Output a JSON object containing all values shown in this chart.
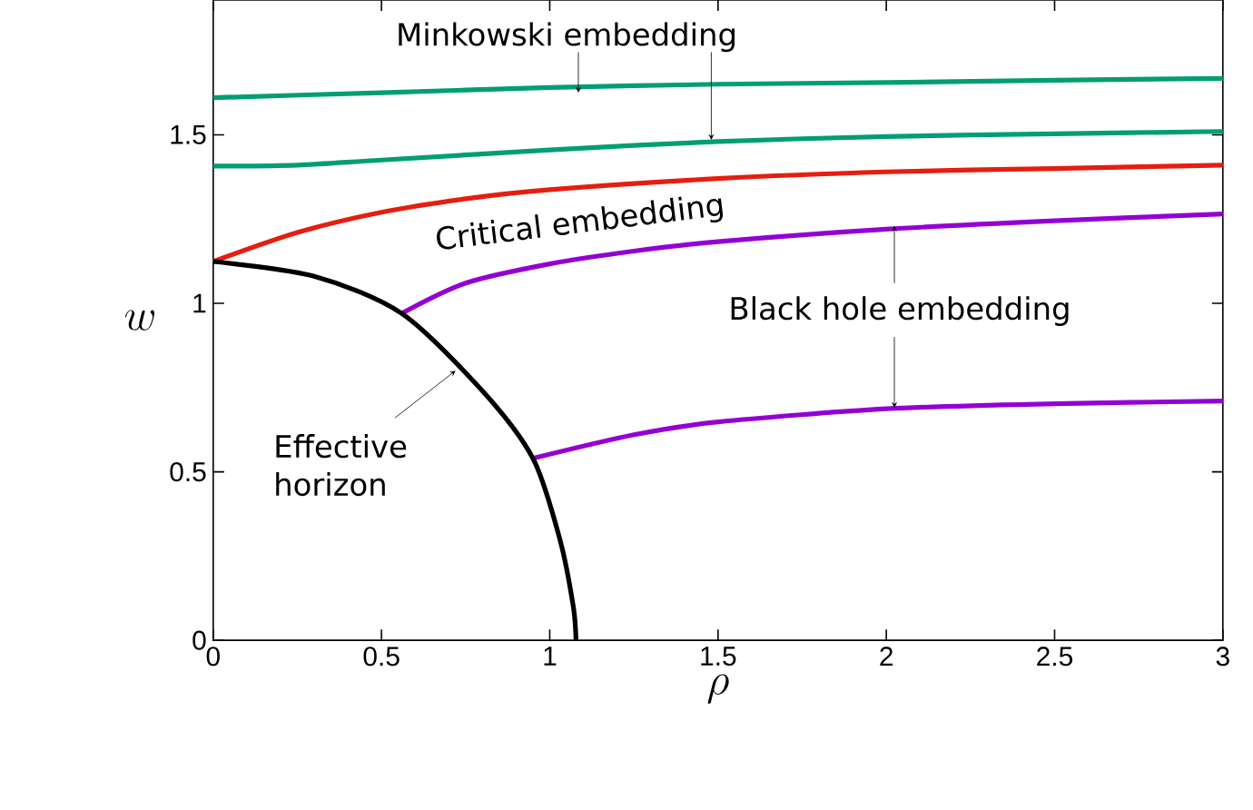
{
  "chart_data": {
    "type": "line",
    "xlabel": "\\rho",
    "ylabel": "w",
    "xlim": [
      0,
      3
    ],
    "ylim": [
      0,
      1.9
    ],
    "xticks": [
      0,
      0.5,
      1,
      1.5,
      2,
      2.5,
      3
    ],
    "yticks": [
      0,
      0.5,
      1,
      1.5
    ],
    "grid": false,
    "marker": "none",
    "line_style": "solid",
    "annotations": [
      {
        "text": "Minkowski embedding",
        "x": 1.085,
        "y": 1.625
      },
      "Critical embedding",
      {
        "text": "Black hole embedding",
        "x": 2.024,
        "y": 1.23
      },
      {
        "text": "Effective horizon",
        "x": 0.72,
        "y": 0.8
      }
    ],
    "series": [
      {
        "color": "#009e73",
        "x": [
          0,
          0.5,
          1,
          1.5,
          2,
          2.5,
          3
        ],
        "values": [
          1.61,
          1.625,
          1.64,
          1.65,
          1.655,
          1.662,
          1.667
        ]
      },
      {
        "color": "#009e73",
        "x": [
          0,
          0.25,
          0.5,
          1,
          1.5,
          2,
          2.5,
          3
        ],
        "values": [
          1.407,
          1.41,
          1.425,
          1.455,
          1.48,
          1.495,
          1.503,
          1.51
        ]
      },
      {
        "color": "#e51e10",
        "x": [
          0,
          0.25,
          0.5,
          0.75,
          1,
          1.5,
          2,
          2.5,
          3
        ],
        "values": [
          1.124,
          1.21,
          1.27,
          1.31,
          1.337,
          1.37,
          1.39,
          1.4,
          1.41
        ]
      },
      {
        "color": "#9400d3",
        "x": [
          0.56,
          0.75,
          1,
          1.25,
          1.5,
          2,
          2.5,
          3
        ],
        "values": [
          0.97,
          1.06,
          1.117,
          1.155,
          1.183,
          1.22,
          1.245,
          1.265
        ]
      },
      {
        "color": "#9400d3",
        "x": [
          0.95,
          1.25,
          1.5,
          2,
          2.5,
          3
        ],
        "values": [
          0.54,
          0.61,
          0.648,
          0.687,
          0.702,
          0.71
        ]
      },
      {
        "color": "#000000",
        "x": [
          0,
          0.3,
          0.56,
          0.8,
          0.95,
          1.03,
          1.07,
          1.078
        ],
        "values": [
          1.124,
          1.08,
          0.97,
          0.74,
          0.54,
          0.3,
          0.1,
          0
        ]
      }
    ]
  }
}
